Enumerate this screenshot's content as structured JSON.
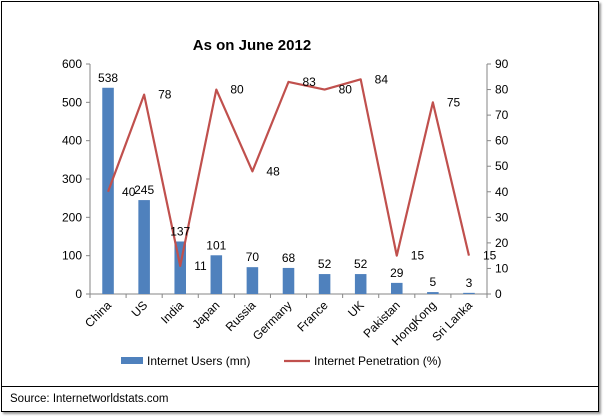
{
  "chart_data": {
    "type": "bar",
    "title": "As on June 2012",
    "categories": [
      "China",
      "US",
      "India",
      "Japan",
      "Russia",
      "Germany",
      "France",
      "UK",
      "Pakistan",
      "HongKong",
      "Sri Lanka"
    ],
    "series": [
      {
        "name": "Internet Users (mn)",
        "type": "bar",
        "axis": "left",
        "values": [
          538,
          245,
          137,
          101,
          70,
          68,
          52,
          52,
          29,
          5,
          3
        ],
        "color": "#4F81BD"
      },
      {
        "name": "Internet Penetration (%)",
        "type": "line",
        "axis": "right",
        "values": [
          40,
          78,
          11,
          80,
          48,
          83,
          80,
          84,
          15,
          75,
          15
        ],
        "color": "#C0504D"
      }
    ],
    "ylim_left": [
      0,
      600
    ],
    "yticks_left": [
      "0",
      "100",
      "200",
      "300",
      "400",
      "500",
      "600"
    ],
    "ylim_right": [
      0,
      90
    ],
    "yticks_right": [
      "0",
      "10",
      "20",
      "30",
      "40",
      "50",
      "60",
      "70",
      "80",
      "90"
    ],
    "grid": false,
    "legend_position": "bottom"
  },
  "source_text": "Source: Internetworldstats.com"
}
